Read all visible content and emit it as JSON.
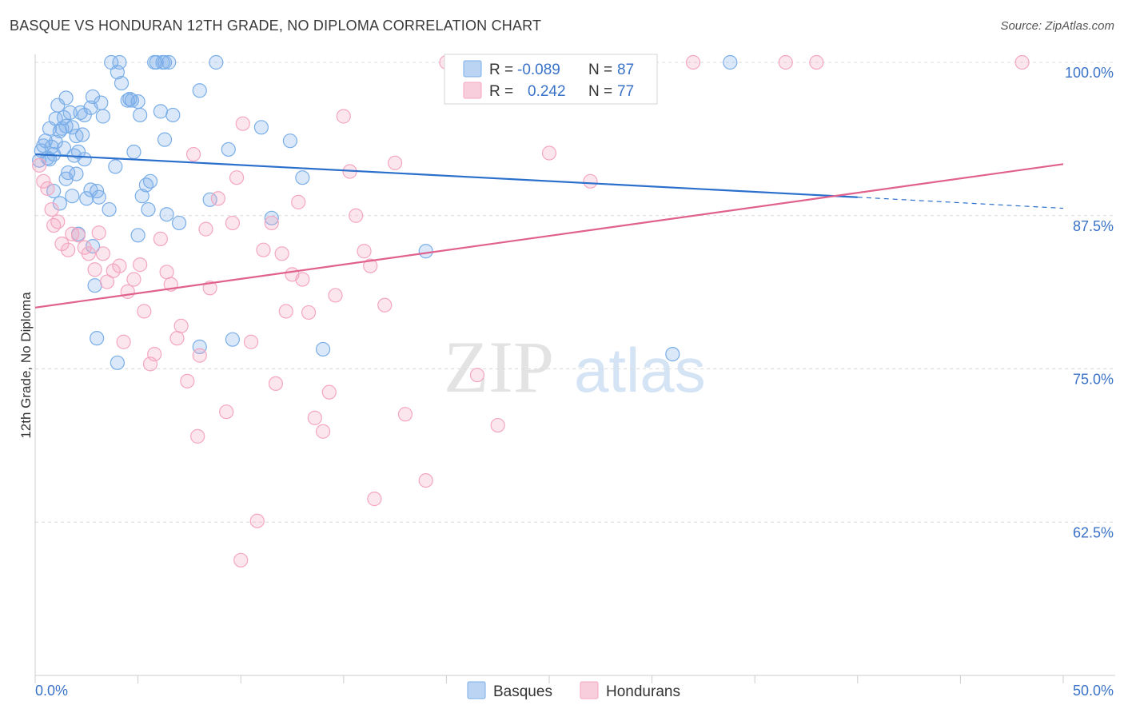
{
  "title": "BASQUE VS HONDURAN 12TH GRADE, NO DIPLOMA CORRELATION CHART",
  "source": "Source: ZipAtlas.com",
  "watermark": {
    "zip": "ZIP",
    "atlas": "atlas"
  },
  "chart_data": {
    "type": "scatter",
    "ylabel": "12th Grade, No Diploma",
    "xlim": [
      0,
      50
    ],
    "ylim": [
      50,
      100
    ],
    "x_ticks": [
      {
        "value": 0,
        "label": "0.0%"
      },
      {
        "value": 50,
        "label": "50.0%"
      }
    ],
    "y_ticks": [
      {
        "value": 100,
        "label": "100.0%"
      },
      {
        "value": 87.5,
        "label": "87.5%"
      },
      {
        "value": 75,
        "label": "75.0%"
      },
      {
        "value": 62.5,
        "label": "62.5%"
      }
    ],
    "grid": "dashed horizontal",
    "legend_placement": "top-center",
    "series": [
      {
        "name": "Basques",
        "color": "#7aaee8",
        "line_color": "#2a6fcc",
        "R": "-0.089",
        "N": "87",
        "trend": {
          "x0": 0,
          "y0": 92.5,
          "x1": 40,
          "y1": 89.0,
          "dash_to_x": 50,
          "dash_to_y": 88.1
        },
        "points": [
          [
            0.3,
            92.8
          ],
          [
            0.4,
            93.2
          ],
          [
            0.5,
            93.6
          ],
          [
            0.6,
            92.2
          ],
          [
            0.7,
            94.6
          ],
          [
            0.8,
            93.1
          ],
          [
            0.9,
            92.5
          ],
          [
            1.0,
            95.4
          ],
          [
            1.1,
            96.5
          ],
          [
            1.2,
            94.4
          ],
          [
            1.3,
            94.6
          ],
          [
            1.4,
            95.5
          ],
          [
            1.5,
            94.8
          ],
          [
            1.5,
            97.1
          ],
          [
            1.6,
            91.0
          ],
          [
            1.7,
            95.9
          ],
          [
            1.8,
            89.1
          ],
          [
            1.9,
            92.4
          ],
          [
            2.0,
            90.9
          ],
          [
            2.1,
            92.7
          ],
          [
            2.2,
            95.9
          ],
          [
            2.3,
            94.1
          ],
          [
            2.4,
            92.1
          ],
          [
            2.5,
            88.9
          ],
          [
            2.7,
            96.3
          ],
          [
            2.8,
            97.2
          ],
          [
            3.0,
            89.5
          ],
          [
            3.1,
            89.0
          ],
          [
            3.2,
            96.7
          ],
          [
            3.3,
            95.6
          ],
          [
            3.6,
            88.0
          ],
          [
            3.7,
            100.0
          ],
          [
            3.9,
            91.5
          ],
          [
            4.0,
            99.2
          ],
          [
            4.1,
            100.0
          ],
          [
            4.2,
            98.3
          ],
          [
            4.5,
            96.9
          ],
          [
            4.7,
            96.9
          ],
          [
            4.8,
            92.7
          ],
          [
            5.0,
            96.8
          ],
          [
            5.1,
            95.7
          ],
          [
            5.2,
            89.1
          ],
          [
            5.4,
            90.0
          ],
          [
            5.5,
            88.0
          ],
          [
            5.6,
            90.3
          ],
          [
            5.8,
            100.0
          ],
          [
            5.9,
            100.0
          ],
          [
            6.1,
            96.0
          ],
          [
            6.2,
            100.0
          ],
          [
            6.3,
            100.0
          ],
          [
            6.3,
            93.7
          ],
          [
            6.5,
            100.0
          ],
          [
            6.7,
            95.7
          ],
          [
            8.0,
            97.7
          ],
          [
            8.5,
            88.8
          ],
          [
            8.8,
            100.0
          ],
          [
            9.4,
            92.9
          ],
          [
            11.0,
            94.7
          ],
          [
            11.5,
            87.3
          ],
          [
            12.4,
            93.6
          ],
          [
            13.0,
            90.6
          ],
          [
            19.0,
            84.6
          ],
          [
            0.2,
            92.0
          ],
          [
            0.7,
            92.1
          ],
          [
            1.0,
            93.5
          ],
          [
            1.8,
            94.7
          ],
          [
            2.1,
            86.0
          ],
          [
            2.7,
            89.6
          ],
          [
            2.8,
            85.0
          ],
          [
            2.9,
            81.8
          ],
          [
            3.0,
            77.5
          ],
          [
            4.0,
            75.5
          ],
          [
            5.0,
            85.9
          ],
          [
            6.4,
            87.6
          ],
          [
            7.0,
            86.9
          ],
          [
            8.0,
            76.8
          ],
          [
            9.6,
            77.4
          ],
          [
            14.0,
            76.6
          ],
          [
            31.0,
            76.2
          ],
          [
            33.8,
            100.0
          ],
          [
            1.2,
            88.5
          ],
          [
            1.5,
            90.5
          ],
          [
            0.9,
            89.5
          ],
          [
            1.4,
            93.0
          ],
          [
            2.0,
            94.0
          ],
          [
            2.4,
            95.7
          ],
          [
            4.6,
            97.0
          ]
        ]
      },
      {
        "name": "Hondurans",
        "color": "#f4a6c0",
        "line_color": "#e0608e",
        "R": "0.242",
        "N": "77",
        "trend": {
          "x0": 0,
          "y0": 80.0,
          "x1": 50,
          "y1": 91.7
        },
        "points": [
          [
            0.2,
            91.6
          ],
          [
            0.4,
            90.3
          ],
          [
            0.6,
            89.7
          ],
          [
            0.8,
            88.0
          ],
          [
            0.9,
            86.7
          ],
          [
            1.1,
            87.0
          ],
          [
            1.3,
            85.2
          ],
          [
            1.6,
            84.7
          ],
          [
            1.8,
            86.0
          ],
          [
            2.1,
            85.9
          ],
          [
            2.4,
            84.9
          ],
          [
            2.6,
            84.4
          ],
          [
            2.9,
            83.1
          ],
          [
            3.1,
            86.1
          ],
          [
            3.3,
            84.4
          ],
          [
            3.5,
            82.1
          ],
          [
            3.8,
            83.0
          ],
          [
            4.1,
            83.4
          ],
          [
            4.3,
            77.2
          ],
          [
            4.5,
            81.3
          ],
          [
            4.8,
            82.3
          ],
          [
            5.1,
            83.5
          ],
          [
            5.3,
            79.7
          ],
          [
            5.6,
            75.4
          ],
          [
            5.8,
            76.2
          ],
          [
            6.1,
            85.6
          ],
          [
            6.4,
            82.9
          ],
          [
            6.6,
            81.9
          ],
          [
            6.9,
            77.5
          ],
          [
            7.1,
            78.5
          ],
          [
            7.4,
            74.0
          ],
          [
            7.7,
            92.5
          ],
          [
            7.9,
            69.5
          ],
          [
            8.0,
            76.1
          ],
          [
            8.3,
            86.4
          ],
          [
            8.5,
            81.6
          ],
          [
            8.9,
            88.9
          ],
          [
            9.3,
            71.5
          ],
          [
            9.6,
            86.9
          ],
          [
            9.8,
            90.6
          ],
          [
            10.1,
            95.0
          ],
          [
            10.5,
            77.2
          ],
          [
            10.8,
            62.6
          ],
          [
            11.1,
            84.7
          ],
          [
            11.5,
            86.9
          ],
          [
            11.7,
            73.8
          ],
          [
            12.0,
            84.4
          ],
          [
            12.2,
            79.7
          ],
          [
            12.5,
            82.7
          ],
          [
            12.8,
            88.6
          ],
          [
            13.0,
            82.3
          ],
          [
            13.3,
            79.6
          ],
          [
            13.6,
            71.0
          ],
          [
            14.0,
            69.9
          ],
          [
            14.3,
            73.1
          ],
          [
            14.6,
            81.0
          ],
          [
            15.0,
            95.6
          ],
          [
            15.3,
            91.1
          ],
          [
            15.6,
            87.5
          ],
          [
            16.0,
            84.6
          ],
          [
            16.3,
            83.4
          ],
          [
            16.5,
            64.4
          ],
          [
            17.0,
            80.2
          ],
          [
            17.5,
            91.8
          ],
          [
            18.0,
            71.3
          ],
          [
            19.0,
            65.9
          ],
          [
            20.0,
            100.0
          ],
          [
            21.5,
            74.5
          ],
          [
            22.5,
            70.4
          ],
          [
            24.0,
            100.0
          ],
          [
            25.0,
            92.6
          ],
          [
            27.0,
            90.3
          ],
          [
            32.0,
            100.0
          ],
          [
            36.5,
            100.0
          ],
          [
            38.0,
            100.0
          ],
          [
            48.0,
            100.0
          ],
          [
            10.0,
            59.4
          ]
        ]
      }
    ]
  }
}
